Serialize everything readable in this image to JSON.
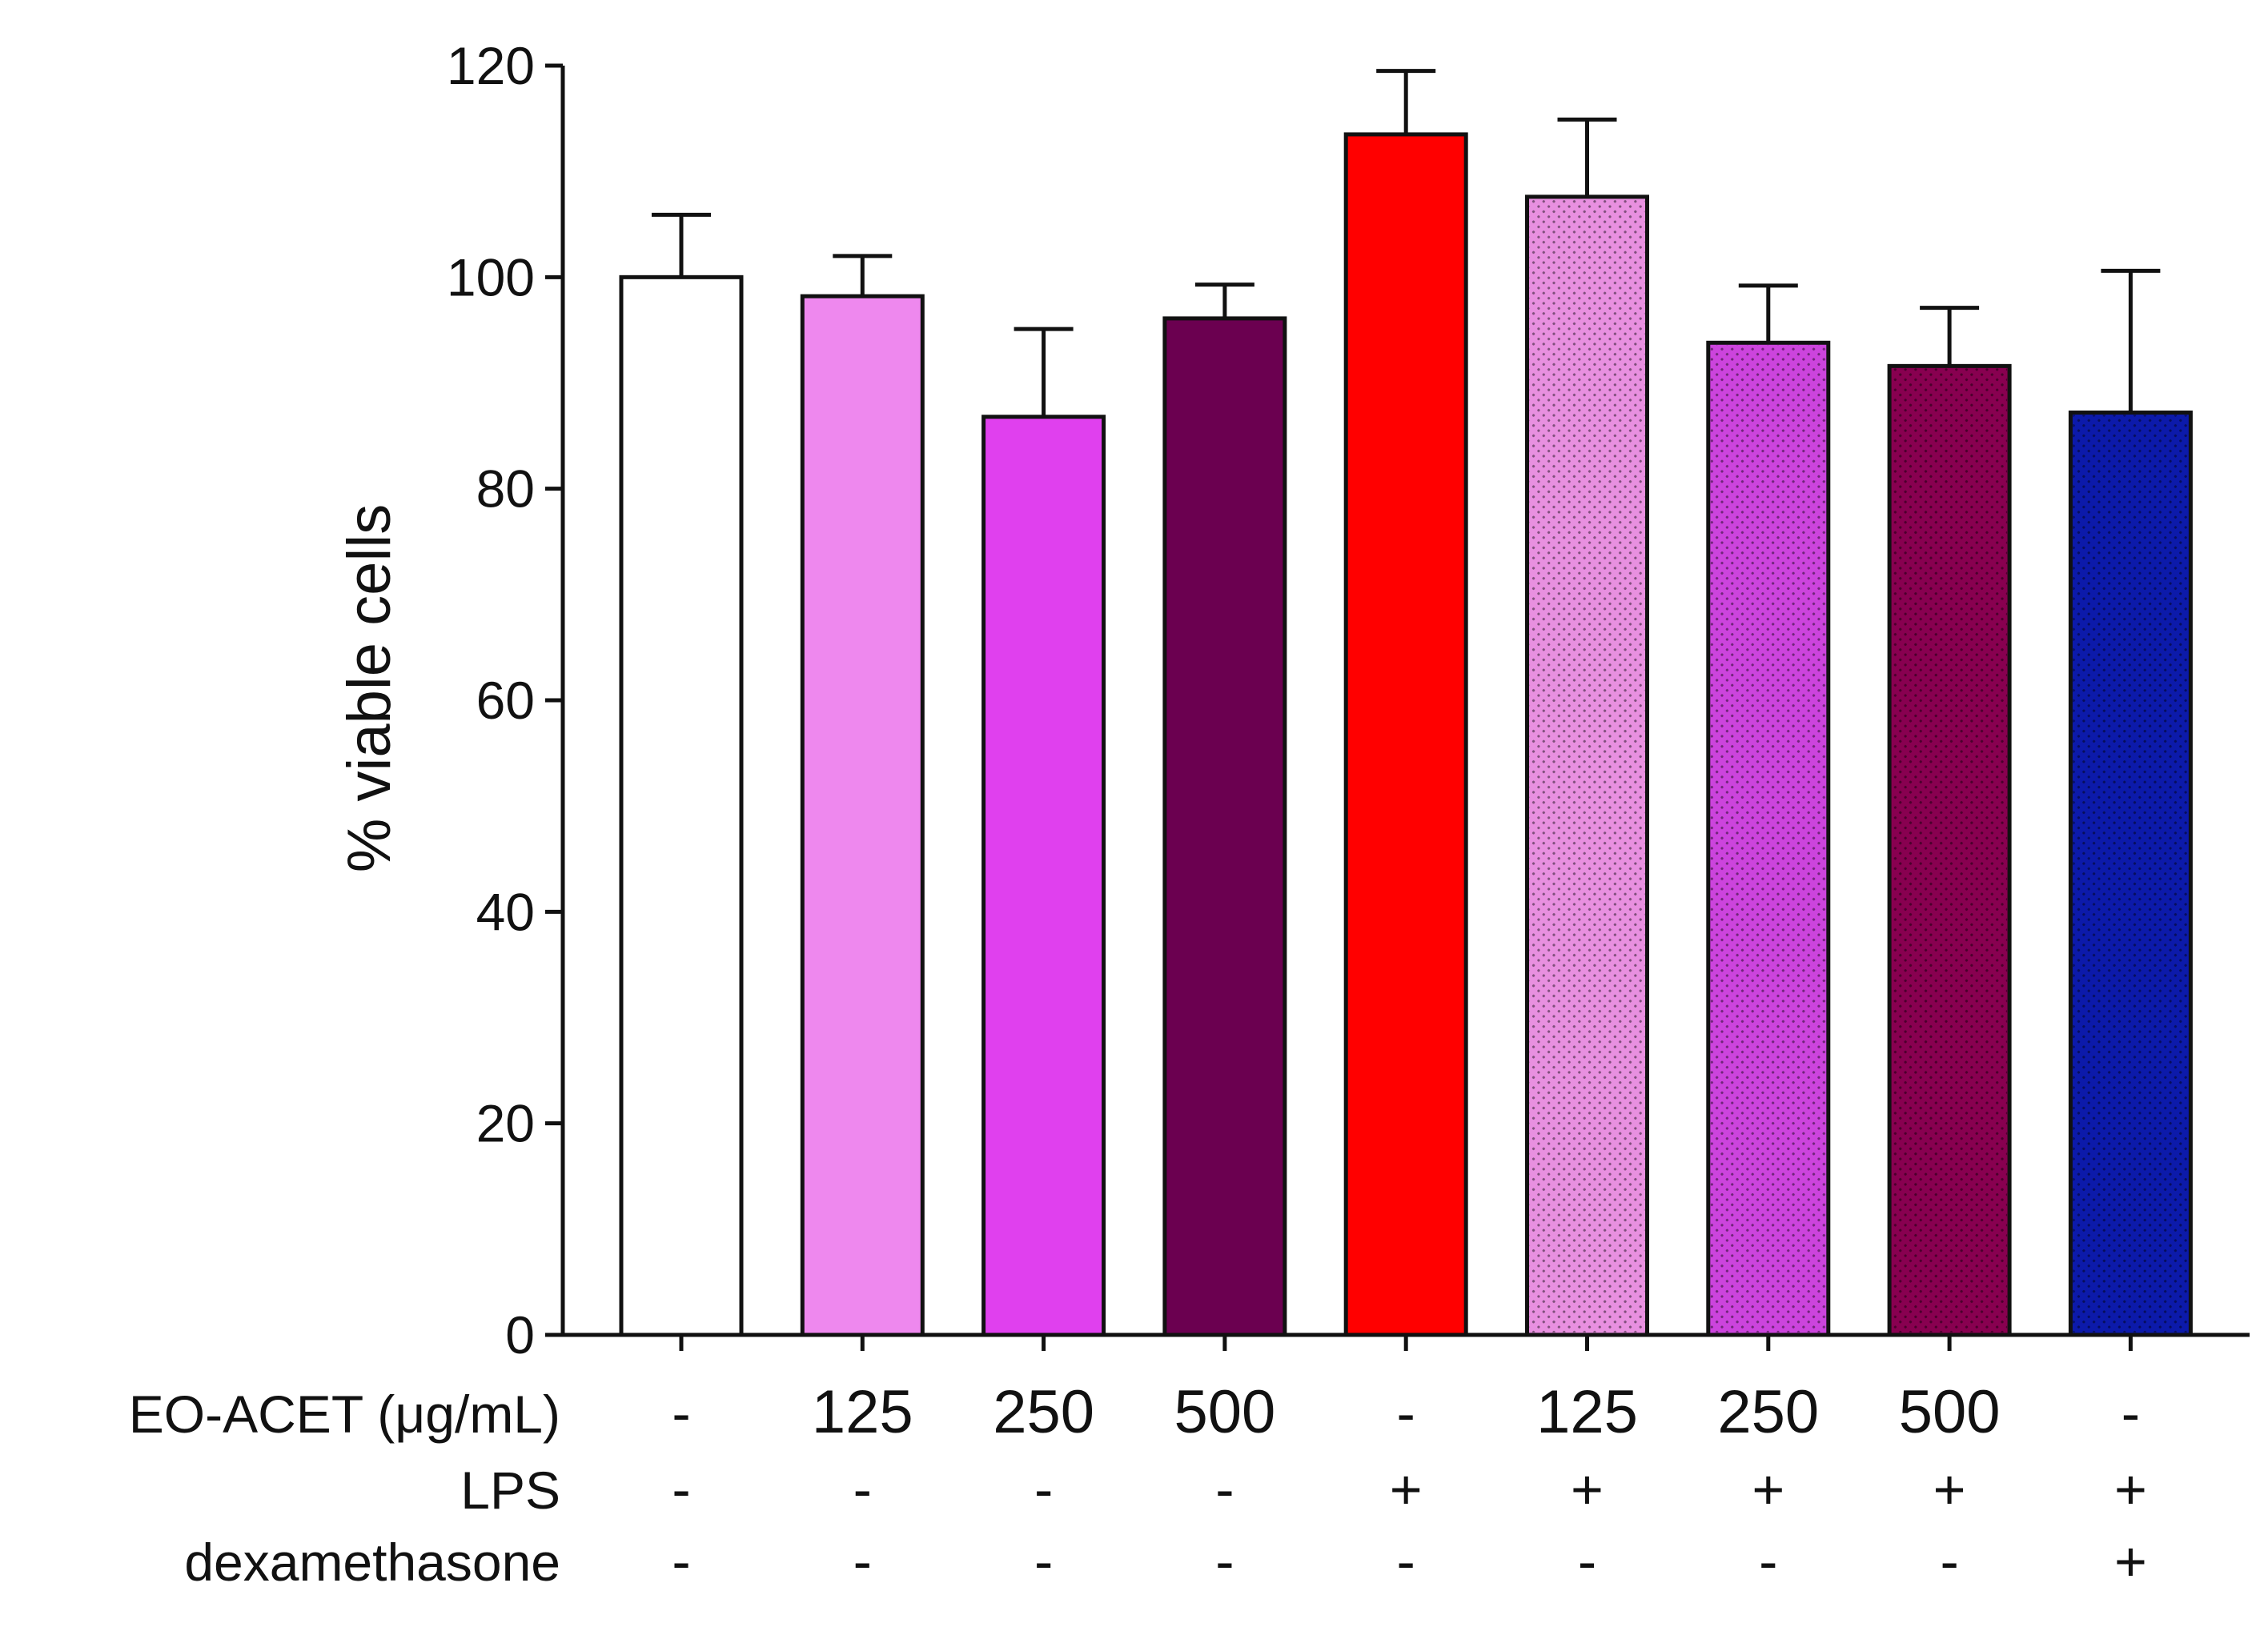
{
  "chart_data": {
    "type": "bar",
    "title": "",
    "xlabel": "",
    "ylabel": "% viable cells",
    "ylim": [
      0,
      120
    ],
    "yticks": [
      0,
      20,
      40,
      60,
      80,
      100,
      120
    ],
    "grid": false,
    "values": [
      100,
      98.2,
      86.8,
      96.1,
      113.5,
      107.6,
      93.8,
      91.6,
      87.2
    ],
    "errors": [
      5.9,
      3.8,
      8.3,
      3.2,
      6.0,
      7.3,
      5.4,
      5.5,
      13.4
    ],
    "colors": [
      "#ffffff",
      "#ee88ee",
      "#e040ee",
      "#6b0050",
      "#ff0000",
      "#e890e0",
      "#cc44dd",
      "#880050",
      "#0c1aaa"
    ],
    "patterned": [
      false,
      false,
      false,
      false,
      false,
      true,
      true,
      true,
      true
    ],
    "conditions": [
      {
        "label": "EO-ACET (μg/mL)",
        "values": [
          "-",
          "125",
          "250",
          "500",
          "-",
          "125",
          "250",
          "500",
          "-"
        ]
      },
      {
        "label": "LPS",
        "values": [
          "-",
          "-",
          "-",
          "-",
          "+",
          "+",
          "+",
          "+",
          "+"
        ]
      },
      {
        "label": "dexamethasone",
        "values": [
          "-",
          "-",
          "-",
          "-",
          "-",
          "-",
          "-",
          "-",
          "+"
        ]
      }
    ]
  }
}
